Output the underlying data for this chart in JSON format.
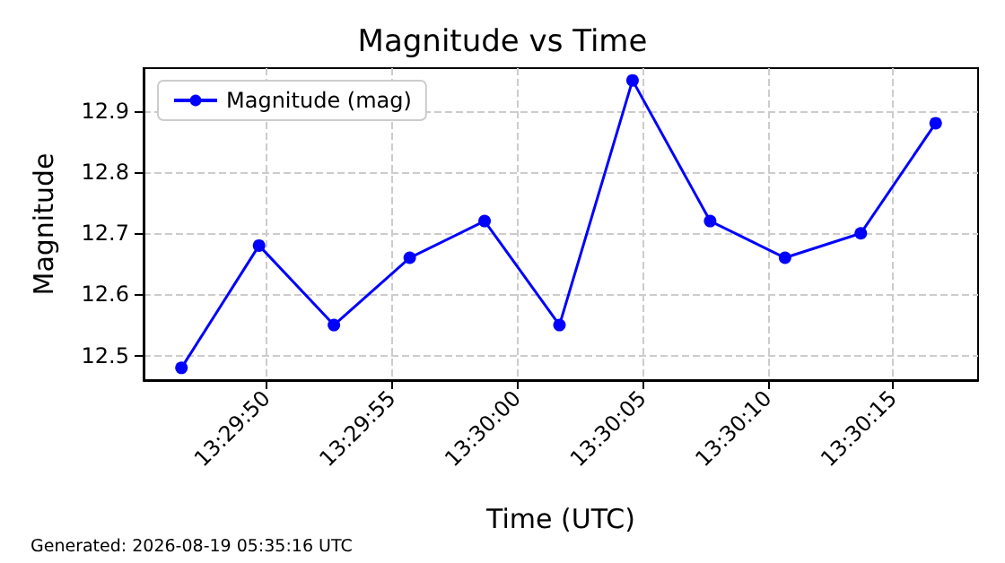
{
  "chart_data": {
    "type": "line",
    "title": "Magnitude vs Time",
    "xlabel": "Time (UTC)",
    "ylabel": "Magnitude",
    "x": [
      13.49628,
      13.49714,
      13.49797,
      13.49881,
      13.49964,
      13.50047,
      13.50128,
      13.50214,
      13.50297,
      13.50381,
      13.50464
    ],
    "series": [
      {
        "name": "Magnitude (mag)",
        "color": "#0000ff",
        "values": [
          12.48,
          12.68,
          12.55,
          12.66,
          12.72,
          12.55,
          12.95,
          12.72,
          12.66,
          12.7,
          12.88
        ]
      }
    ],
    "xlim": [
      13.49586,
      13.50511
    ],
    "xticks": [
      {
        "value": 13.497222,
        "label": "13:29:50"
      },
      {
        "value": 13.498611,
        "label": "13:29:55"
      },
      {
        "value": 13.5,
        "label": "13:30:00"
      },
      {
        "value": 13.501389,
        "label": "13:30:05"
      },
      {
        "value": 13.502778,
        "label": "13:30:10"
      },
      {
        "value": 13.504167,
        "label": "13:30:15"
      }
    ],
    "ylim": [
      12.46,
      12.97
    ],
    "yticks": [
      12.5,
      12.6,
      12.7,
      12.8,
      12.9
    ],
    "grid": true,
    "legend": "top left",
    "marker": "circle",
    "line_style": "solid",
    "annotations": [
      "Generated: 2026-08-19 05:35:16 UTC"
    ]
  }
}
